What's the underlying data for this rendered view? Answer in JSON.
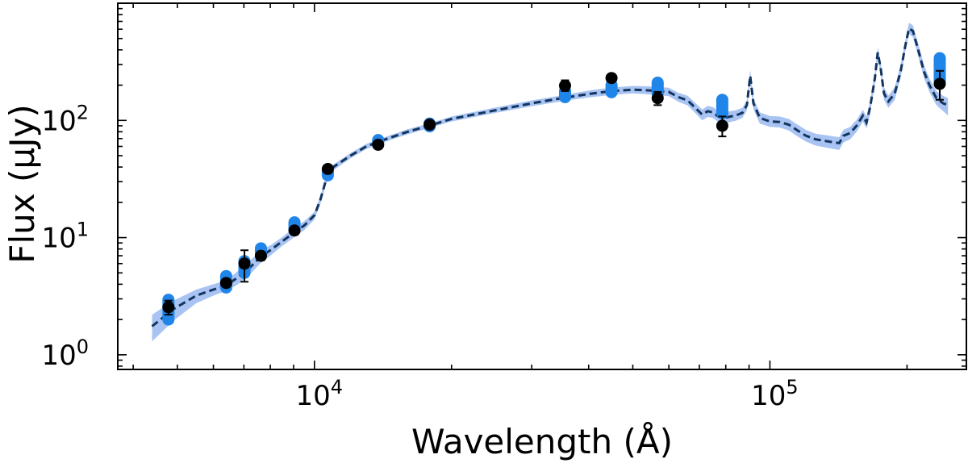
{
  "chart_data": {
    "type": "line",
    "title": "",
    "xlabel": "Wavelength (Å)",
    "ylabel": "Flux (μJy)",
    "xscale": "log",
    "yscale": "log",
    "xlim": [
      3700,
      270000
    ],
    "ylim": [
      0.75,
      1000
    ],
    "x_ticks": [
      {
        "value": 10000,
        "base": "10",
        "exp": "4"
      },
      {
        "value": 100000,
        "base": "10",
        "exp": "5"
      }
    ],
    "y_ticks": [
      {
        "value": 1,
        "base": "10",
        "exp": "0"
      },
      {
        "value": 10,
        "base": "10",
        "exp": "1"
      },
      {
        "value": 100,
        "base": "10",
        "exp": "2"
      }
    ],
    "grid": false,
    "colors": {
      "model_line": "#12345e",
      "model_band": "#a9c4f2",
      "model_photometry": "#1f85e8",
      "observed": "#000000"
    },
    "series": [
      {
        "role": "model_sed",
        "style": "dashed line with shaded band",
        "points": [
          [
            4400,
            1.75,
            1.3,
            2.2
          ],
          [
            4900,
            2.45,
            1.95,
            2.9
          ],
          [
            5500,
            3.2,
            2.75,
            3.6
          ],
          [
            6000,
            3.6,
            3.2,
            4.0
          ],
          [
            6400,
            3.9,
            3.5,
            4.3
          ],
          [
            6800,
            4.6,
            4.0,
            5.2
          ],
          [
            7200,
            5.5,
            4.8,
            6.3
          ],
          [
            7600,
            6.8,
            6.0,
            7.7
          ],
          [
            8000,
            7.8,
            7.0,
            8.6
          ],
          [
            8500,
            9.3,
            8.5,
            10.1
          ],
          [
            9000,
            11.0,
            10.0,
            12.1
          ],
          [
            9500,
            12.7,
            11.6,
            13.8
          ],
          [
            10000,
            15.5,
            14.3,
            16.6
          ],
          [
            10300,
            21.0,
            19.3,
            22.5
          ],
          [
            10600,
            31.0,
            28.5,
            33.0
          ],
          [
            11000,
            40.0,
            37.5,
            42.0
          ],
          [
            12000,
            50.0,
            47.5,
            52.5
          ],
          [
            13000,
            60.0,
            57.0,
            63.0
          ],
          [
            14000,
            67.0,
            64.0,
            70.0
          ],
          [
            16000,
            80.0,
            76.0,
            84.0
          ],
          [
            18000,
            91.0,
            87.0,
            95.0
          ],
          [
            20000,
            103.0,
            98.0,
            108.0
          ],
          [
            25000,
            122.0,
            116.0,
            129.0
          ],
          [
            30000,
            140.0,
            132.0,
            148.0
          ],
          [
            35000,
            155.0,
            146.0,
            164.0
          ],
          [
            40000,
            168.0,
            157.0,
            180.0
          ],
          [
            45000,
            178.0,
            165.0,
            191.0
          ],
          [
            50000,
            183.0,
            170.0,
            197.0
          ],
          [
            55000,
            180.0,
            166.0,
            195.0
          ],
          [
            60000,
            175.0,
            161.0,
            190.0
          ],
          [
            63000,
            158.0,
            144.0,
            172.0
          ],
          [
            66000,
            148.0,
            134.0,
            162.0
          ],
          [
            69000,
            125.0,
            113.0,
            138.0
          ],
          [
            71000,
            112.0,
            100.0,
            124.0
          ],
          [
            73000,
            120.0,
            107.0,
            133.0
          ],
          [
            75000,
            117.0,
            105.0,
            130.0
          ],
          [
            77000,
            108.0,
            97.0,
            120.0
          ],
          [
            80000,
            106.0,
            95.0,
            118.0
          ],
          [
            84000,
            110.0,
            99.0,
            122.0
          ],
          [
            87000,
            116.0,
            105.0,
            128.0
          ],
          [
            89000,
            135.0,
            122.0,
            148.0
          ],
          [
            90500,
            240.0,
            210.0,
            270.0
          ],
          [
            92000,
            140.0,
            125.0,
            155.0
          ],
          [
            95000,
            105.0,
            94.0,
            117.0
          ],
          [
            100000,
            98.0,
            88.0,
            109.0
          ],
          [
            105000,
            97.0,
            87.0,
            108.0
          ],
          [
            110000,
            92.0,
            82.0,
            103.0
          ],
          [
            115000,
            82.0,
            73.0,
            92.0
          ],
          [
            120000,
            74.0,
            66.0,
            83.0
          ],
          [
            126000,
            69.0,
            61.0,
            77.0
          ],
          [
            132000,
            67.0,
            59.0,
            75.0
          ],
          [
            138000,
            65.0,
            57.0,
            73.0
          ],
          [
            142000,
            64.0,
            56.0,
            72.0
          ],
          [
            145000,
            74.0,
            65.0,
            83.0
          ],
          [
            150000,
            78.0,
            69.0,
            88.0
          ],
          [
            155000,
            90.0,
            80.0,
            101.0
          ],
          [
            160000,
            110.0,
            98.0,
            123.0
          ],
          [
            163000,
            96.0,
            85.0,
            108.0
          ],
          [
            166000,
            130.0,
            115.0,
            146.0
          ],
          [
            170000,
            230.0,
            205.0,
            258.0
          ],
          [
            172500,
            380.0,
            340.0,
            420.0
          ],
          [
            175000,
            280.0,
            250.0,
            315.0
          ],
          [
            178000,
            170.0,
            150.0,
            192.0
          ],
          [
            182000,
            145.0,
            128.0,
            163.0
          ],
          [
            188000,
            170.0,
            150.0,
            192.0
          ],
          [
            194000,
            270.0,
            240.0,
            305.0
          ],
          [
            198000,
            420.0,
            375.0,
            470.0
          ],
          [
            202000,
            610.0,
            545.0,
            680.0
          ],
          [
            206000,
            580.0,
            515.0,
            650.0
          ],
          [
            212000,
            390.0,
            345.0,
            440.0
          ],
          [
            218000,
            260.0,
            230.0,
            295.0
          ],
          [
            224000,
            200.0,
            175.0,
            228.0
          ],
          [
            232000,
            155.0,
            135.0,
            178.0
          ],
          [
            240000,
            140.0,
            120.0,
            162.0
          ],
          [
            246000,
            135.0,
            110.0,
            155.0
          ]
        ]
      },
      {
        "role": "model_photometry",
        "style": "blue capsule markers",
        "points": [
          [
            4780,
            2.0,
            2.95
          ],
          [
            6400,
            3.75,
            4.7
          ],
          [
            7020,
            5.0,
            6.3
          ],
          [
            7630,
            7.0,
            8.1
          ],
          [
            9040,
            11.8,
            13.5
          ],
          [
            10700,
            34.0,
            38.0
          ],
          [
            13800,
            64.0,
            68.0
          ],
          [
            17900,
            89.0,
            94.0
          ],
          [
            35500,
            158.0,
            178.0
          ],
          [
            44900,
            174.0,
            200.0
          ],
          [
            56700,
            170.0,
            210.0
          ],
          [
            78600,
            115.0,
            150.0
          ],
          [
            236000,
            215.0,
            340.0
          ]
        ]
      },
      {
        "role": "observed_photometry",
        "style": "black circles with error bars",
        "points": [
          [
            4780,
            2.55,
            2.2,
            2.9
          ],
          [
            6400,
            4.1,
            3.85,
            4.4
          ],
          [
            7020,
            6.0,
            4.2,
            7.8
          ],
          [
            7630,
            7.0,
            6.4,
            7.6
          ],
          [
            9040,
            11.5,
            10.6,
            12.3
          ],
          [
            10700,
            38.5,
            36.5,
            41.0
          ],
          [
            13800,
            62.0,
            59.0,
            65.0
          ],
          [
            17900,
            92.0,
            88.0,
            96.0
          ],
          [
            35500,
            198.0,
            178.0,
            220.0
          ],
          [
            44900,
            230.0,
            218.0,
            242.0
          ],
          [
            56700,
            155.0,
            135.0,
            175.0
          ],
          [
            78600,
            90.0,
            73.0,
            108.0
          ],
          [
            236000,
            205.0,
            150.0,
            265.0
          ]
        ]
      }
    ]
  }
}
